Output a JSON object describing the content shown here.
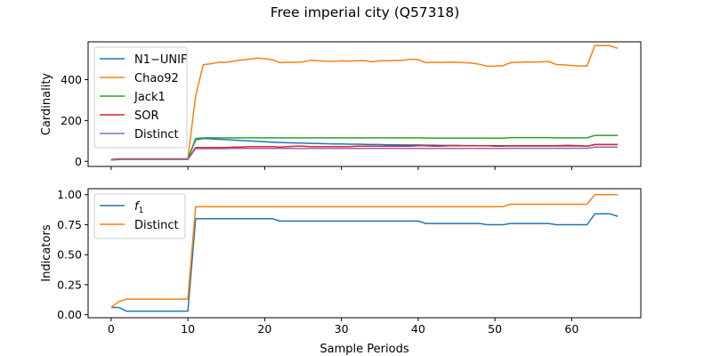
{
  "title": "Free imperial city (Q57318)",
  "chart_data": [
    {
      "type": "line",
      "ylabel": "Cardinality",
      "xlim": [
        -3,
        69
      ],
      "ylim": [
        -25,
        585
      ],
      "yticks": [
        0,
        200,
        400
      ],
      "legend": "top-left",
      "series": [
        {
          "name": "N1−UNIF",
          "color": "#1f77b4",
          "x": [
            0,
            1,
            2,
            3,
            4,
            5,
            6,
            7,
            8,
            9,
            10,
            11,
            12,
            13,
            14,
            15,
            16,
            17,
            18,
            19,
            20,
            21,
            22,
            23,
            24,
            25,
            26,
            27,
            28,
            29,
            30,
            31,
            32,
            33,
            34,
            35,
            36,
            37,
            38,
            39,
            40,
            41,
            42,
            43,
            44,
            45,
            46,
            47,
            48,
            49,
            50,
            51,
            52,
            53,
            54,
            55,
            56,
            57,
            58,
            59,
            60,
            61,
            62,
            63,
            64,
            65,
            66
          ],
          "values": [
            10,
            12,
            12,
            12,
            12,
            12,
            12,
            12,
            12,
            12,
            12,
            105,
            112,
            110,
            108,
            106,
            104,
            102,
            100,
            98,
            96,
            94,
            92,
            91,
            90,
            89,
            88,
            87,
            86,
            85,
            85,
            84,
            84,
            83,
            82,
            82,
            81,
            81,
            80,
            80,
            80,
            79,
            79,
            78,
            78,
            78,
            77,
            77,
            76,
            76,
            76,
            76,
            75,
            75,
            75,
            75,
            75,
            75,
            75,
            75,
            75,
            75,
            74,
            82,
            82,
            82,
            82
          ]
        },
        {
          "name": "Chao92",
          "color": "#ff7f0e",
          "x": [
            0,
            1,
            2,
            3,
            4,
            5,
            6,
            7,
            8,
            9,
            10,
            11,
            12,
            13,
            14,
            15,
            16,
            17,
            18,
            19,
            20,
            21,
            22,
            23,
            24,
            25,
            26,
            27,
            28,
            29,
            30,
            31,
            32,
            33,
            34,
            35,
            36,
            37,
            38,
            39,
            40,
            41,
            42,
            43,
            44,
            45,
            46,
            47,
            48,
            49,
            50,
            51,
            52,
            53,
            54,
            55,
            56,
            57,
            58,
            59,
            60,
            61,
            62,
            63,
            64,
            65,
            66
          ],
          "values": [
            8,
            12,
            12,
            12,
            12,
            12,
            12,
            12,
            12,
            12,
            12,
            320,
            473,
            478,
            485,
            485,
            491,
            496,
            500,
            505,
            502,
            498,
            483,
            485,
            485,
            487,
            495,
            492,
            490,
            489,
            492,
            491,
            492,
            493,
            487,
            492,
            492,
            494,
            495,
            500,
            498,
            483,
            485,
            484,
            486,
            485,
            483,
            481,
            475,
            465,
            466,
            468,
            483,
            485,
            487,
            486,
            487,
            489,
            474,
            472,
            469,
            467,
            466,
            567,
            567,
            566,
            553
          ]
        },
        {
          "name": "Jack1",
          "color": "#2ca02c",
          "x": [
            0,
            1,
            2,
            3,
            4,
            5,
            6,
            7,
            8,
            9,
            10,
            11,
            12,
            13,
            14,
            15,
            16,
            17,
            18,
            19,
            20,
            21,
            22,
            23,
            24,
            25,
            26,
            27,
            28,
            29,
            30,
            31,
            32,
            33,
            34,
            35,
            36,
            37,
            38,
            39,
            40,
            41,
            42,
            43,
            44,
            45,
            46,
            47,
            48,
            49,
            50,
            51,
            52,
            53,
            54,
            55,
            56,
            57,
            58,
            59,
            60,
            61,
            62,
            63,
            64,
            65,
            66
          ],
          "values": [
            6,
            10,
            10,
            10,
            10,
            10,
            10,
            10,
            10,
            10,
            10,
            112,
            115,
            115,
            115,
            115,
            115,
            115,
            115,
            115,
            115,
            115,
            115,
            115,
            115,
            115,
            115,
            115,
            115,
            115,
            115,
            115,
            115,
            115,
            115,
            115,
            115,
            115,
            115,
            115,
            115,
            114,
            114,
            114,
            114,
            114,
            114,
            114,
            114,
            113,
            113,
            113,
            116,
            116,
            116,
            116,
            116,
            116,
            115,
            115,
            115,
            115,
            115,
            127,
            127,
            127,
            127
          ]
        },
        {
          "name": "SOR",
          "color": "#d62728",
          "x": [
            0,
            1,
            2,
            3,
            4,
            5,
            6,
            7,
            8,
            9,
            10,
            11,
            12,
            13,
            14,
            15,
            16,
            17,
            18,
            19,
            20,
            21,
            22,
            23,
            24,
            25,
            26,
            27,
            28,
            29,
            30,
            31,
            32,
            33,
            34,
            35,
            36,
            37,
            38,
            39,
            40,
            41,
            42,
            43,
            44,
            45,
            46,
            47,
            48,
            49,
            50,
            51,
            52,
            53,
            54,
            55,
            56,
            57,
            58,
            59,
            60,
            61,
            62,
            63,
            64,
            65,
            66
          ],
          "values": [
            6,
            10,
            10,
            10,
            10,
            10,
            10,
            10,
            10,
            10,
            10,
            68,
            68,
            68,
            68,
            68,
            70,
            70,
            72,
            72,
            72,
            72,
            70,
            72,
            74,
            74,
            72,
            72,
            72,
            72,
            72,
            72,
            74,
            74,
            74,
            74,
            74,
            74,
            74,
            74,
            76,
            76,
            74,
            74,
            76,
            76,
            76,
            76,
            76,
            76,
            74,
            74,
            76,
            76,
            76,
            76,
            76,
            76,
            76,
            78,
            78,
            76,
            74,
            82,
            82,
            82,
            82
          ]
        },
        {
          "name": "Distinct",
          "color": "#9467bd",
          "x": [
            0,
            1,
            2,
            3,
            4,
            5,
            6,
            7,
            8,
            9,
            10,
            11,
            12,
            13,
            14,
            15,
            16,
            17,
            18,
            19,
            20,
            21,
            22,
            23,
            24,
            25,
            26,
            27,
            28,
            29,
            30,
            31,
            32,
            33,
            34,
            35,
            36,
            37,
            38,
            39,
            40,
            41,
            42,
            43,
            44,
            45,
            46,
            47,
            48,
            49,
            50,
            51,
            52,
            53,
            54,
            55,
            56,
            57,
            58,
            59,
            60,
            61,
            62,
            63,
            64,
            65,
            66
          ],
          "values": [
            6,
            9,
            9,
            9,
            9,
            9,
            9,
            9,
            9,
            9,
            9,
            62,
            62,
            62,
            62,
            62,
            63,
            63,
            63,
            63,
            63,
            63,
            63,
            63,
            63,
            63,
            63,
            63,
            63,
            63,
            63,
            63,
            63,
            63,
            63,
            63,
            63,
            63,
            63,
            63,
            63,
            63,
            63,
            63,
            63,
            63,
            63,
            63,
            63,
            63,
            63,
            63,
            64,
            64,
            64,
            64,
            64,
            64,
            64,
            64,
            64,
            64,
            64,
            70,
            70,
            70,
            70
          ]
        }
      ]
    },
    {
      "type": "line",
      "ylabel": "Indicators",
      "xlabel": "Sample Periods",
      "xlim": [
        -3,
        69
      ],
      "ylim": [
        -0.025,
        1.05
      ],
      "yticks": [
        0.0,
        0.25,
        0.5,
        0.75,
        1.0
      ],
      "xticks": [
        0,
        10,
        20,
        30,
        40,
        50,
        60
      ],
      "legend": "top-left",
      "series": [
        {
          "name": "f1",
          "color": "#1f77b4",
          "x": [
            0,
            1,
            2,
            3,
            4,
            5,
            6,
            7,
            8,
            9,
            10,
            11,
            12,
            13,
            14,
            15,
            16,
            17,
            18,
            19,
            20,
            21,
            22,
            23,
            24,
            25,
            26,
            27,
            28,
            29,
            30,
            31,
            32,
            33,
            34,
            35,
            36,
            37,
            38,
            39,
            40,
            41,
            42,
            43,
            44,
            45,
            46,
            47,
            48,
            49,
            50,
            51,
            52,
            53,
            54,
            55,
            56,
            57,
            58,
            59,
            60,
            61,
            62,
            63,
            64,
            65,
            66
          ],
          "values": [
            0.06,
            0.06,
            0.03,
            0.03,
            0.03,
            0.03,
            0.03,
            0.03,
            0.03,
            0.03,
            0.03,
            0.8,
            0.8,
            0.8,
            0.8,
            0.8,
            0.8,
            0.8,
            0.8,
            0.8,
            0.8,
            0.8,
            0.78,
            0.78,
            0.78,
            0.78,
            0.78,
            0.78,
            0.78,
            0.78,
            0.78,
            0.78,
            0.78,
            0.78,
            0.78,
            0.78,
            0.78,
            0.78,
            0.78,
            0.78,
            0.78,
            0.76,
            0.76,
            0.76,
            0.76,
            0.76,
            0.76,
            0.76,
            0.76,
            0.75,
            0.75,
            0.75,
            0.76,
            0.76,
            0.76,
            0.76,
            0.76,
            0.76,
            0.75,
            0.75,
            0.75,
            0.75,
            0.75,
            0.84,
            0.84,
            0.84,
            0.82
          ]
        },
        {
          "name": "Distinct",
          "color": "#ff7f0e",
          "x": [
            0,
            1,
            2,
            3,
            4,
            5,
            6,
            7,
            8,
            9,
            10,
            11,
            12,
            13,
            14,
            15,
            16,
            17,
            18,
            19,
            20,
            21,
            22,
            23,
            24,
            25,
            26,
            27,
            28,
            29,
            30,
            31,
            32,
            33,
            34,
            35,
            36,
            37,
            38,
            39,
            40,
            41,
            42,
            43,
            44,
            45,
            46,
            47,
            48,
            49,
            50,
            51,
            52,
            53,
            54,
            55,
            56,
            57,
            58,
            59,
            60,
            61,
            62,
            63,
            64,
            65,
            66
          ],
          "values": [
            0.06,
            0.11,
            0.13,
            0.13,
            0.13,
            0.13,
            0.13,
            0.13,
            0.13,
            0.13,
            0.13,
            0.9,
            0.9,
            0.9,
            0.9,
            0.9,
            0.9,
            0.9,
            0.9,
            0.9,
            0.9,
            0.9,
            0.9,
            0.9,
            0.9,
            0.9,
            0.9,
            0.9,
            0.9,
            0.9,
            0.9,
            0.9,
            0.9,
            0.9,
            0.9,
            0.9,
            0.9,
            0.9,
            0.9,
            0.9,
            0.9,
            0.9,
            0.9,
            0.9,
            0.9,
            0.9,
            0.9,
            0.9,
            0.9,
            0.9,
            0.9,
            0.9,
            0.92,
            0.92,
            0.92,
            0.92,
            0.92,
            0.92,
            0.92,
            0.92,
            0.92,
            0.92,
            0.92,
            1.0,
            1.0,
            1.0,
            1.0
          ]
        }
      ]
    }
  ]
}
